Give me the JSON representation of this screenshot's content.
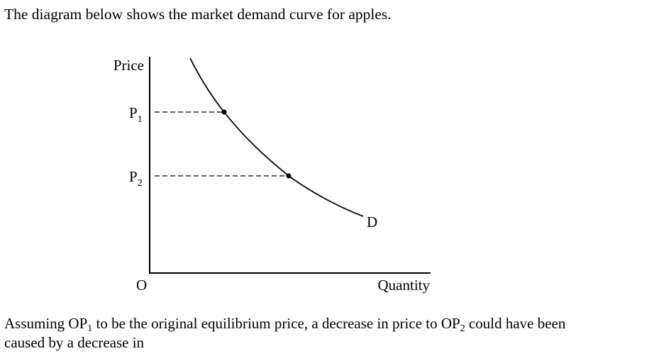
{
  "header": {
    "text": "The diagram below shows the market demand curve for apples."
  },
  "diagram": {
    "y_axis_label": "Price",
    "x_axis_label": "Quantity",
    "origin_label": "O",
    "curve_label": "D",
    "price_levels": [
      {
        "symbol": "P",
        "subscript": "1"
      },
      {
        "symbol": "P",
        "subscript": "2"
      }
    ]
  },
  "question": {
    "lines": [
      [
        {
          "text": "Assuming OP"
        },
        {
          "subscript": "1"
        },
        {
          "text": " to be the original equilibrium price, a decrease in price to OP"
        },
        {
          "subscript": "2"
        },
        {
          "text": " could have been"
        }
      ],
      [
        {
          "text": "caused by a decrease in"
        }
      ]
    ]
  }
}
